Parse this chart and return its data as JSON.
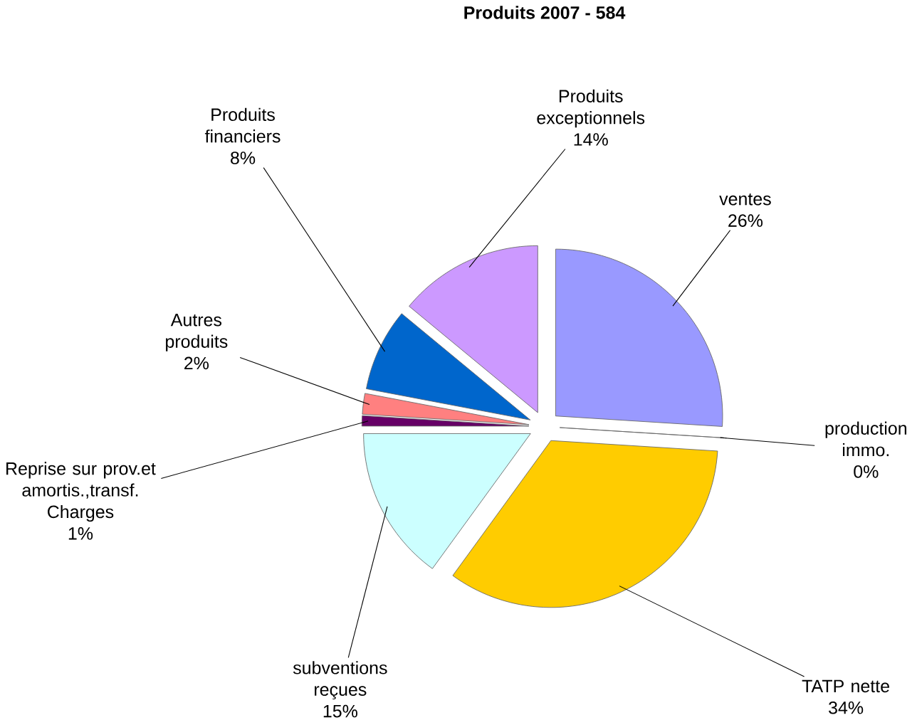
{
  "chart_data": {
    "type": "pie",
    "title": "Produits 2007 - 584",
    "categories": [
      "ventes",
      "production immo.",
      "TATP nette",
      "subventions reçues",
      "Reprise sur prov.et amortis.,transf. Charges",
      "Autres produits",
      "Produits financiers",
      "Produits exceptionnels"
    ],
    "values": [
      26,
      0,
      34,
      15,
      1,
      2,
      8,
      14
    ],
    "value_labels": [
      "26%",
      "0%",
      "34%",
      "15%",
      "1%",
      "2%",
      "8%",
      "14%"
    ],
    "colors": [
      "#9999ff",
      "#ffffff",
      "#ffcc00",
      "#ccffff",
      "#660066",
      "#ff8080",
      "#0066cc",
      "#cc99ff"
    ]
  }
}
